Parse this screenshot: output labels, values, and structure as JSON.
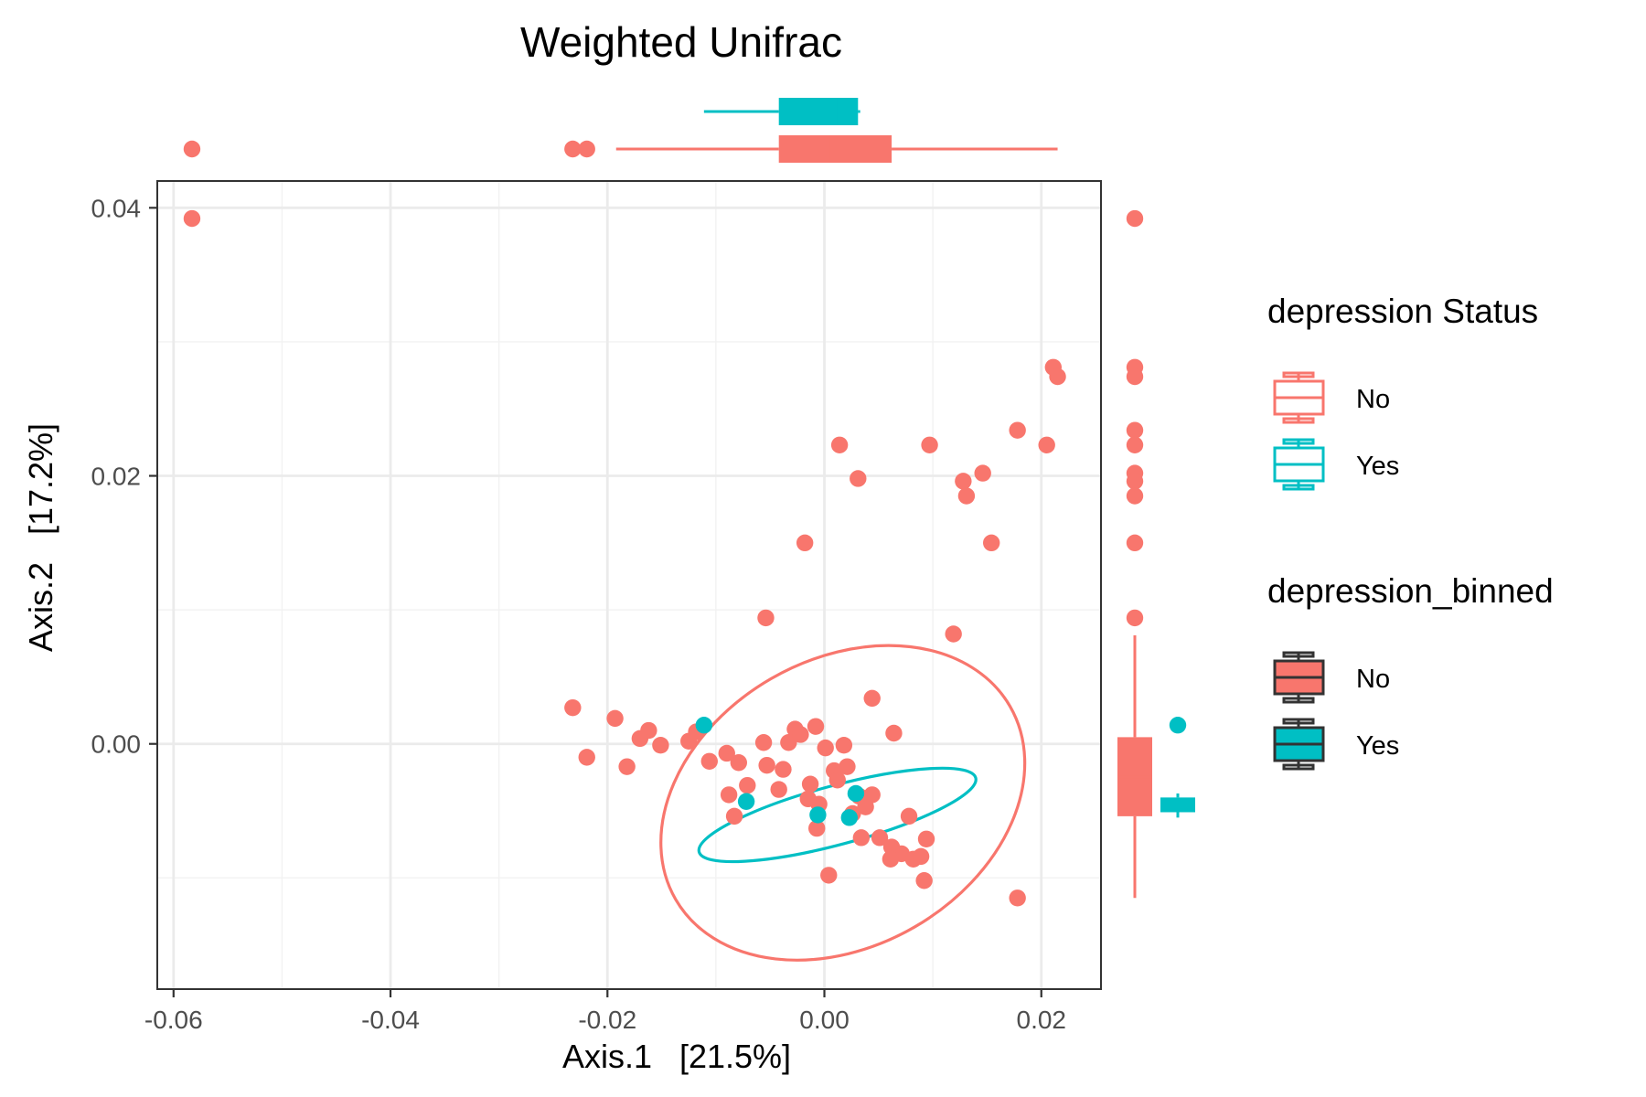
{
  "chart_data": {
    "type": "scatter",
    "title": "Weighted Unifrac",
    "xlabel": "Axis.1   [21.5%]",
    "ylabel": "Axis.2   [17.2%]",
    "xlim": [
      -0.0615,
      0.0255
    ],
    "ylim": [
      -0.0183,
      0.042
    ],
    "x_ticks": [
      -0.06,
      -0.04,
      -0.02,
      0.0,
      0.02
    ],
    "x_tick_labels": [
      "-0.06",
      "-0.04",
      "-0.02",
      "0.00",
      "0.02"
    ],
    "y_ticks": [
      0.0,
      0.02,
      0.04
    ],
    "y_tick_labels": [
      "0.00",
      "0.02",
      "0.04"
    ],
    "grid": true,
    "legend_position": "right",
    "colors": {
      "No": "#F8766D",
      "Yes": "#00BFC4",
      "outline": "#333333"
    },
    "legends": [
      {
        "title": "depression Status",
        "items": [
          "No",
          "Yes"
        ],
        "style": "outline"
      },
      {
        "title": "depression_binned",
        "items": [
          "No",
          "Yes"
        ],
        "style": "filled"
      }
    ],
    "series": [
      {
        "name": "No",
        "points": [
          [
            -0.0583,
            0.0392
          ],
          [
            0.0211,
            0.0281
          ],
          [
            0.0215,
            0.0274
          ],
          [
            0.0178,
            0.0234
          ],
          [
            0.0205,
            0.0223
          ],
          [
            0.0097,
            0.0223
          ],
          [
            0.0014,
            0.0223
          ],
          [
            0.0146,
            0.0202
          ],
          [
            0.0128,
            0.0196
          ],
          [
            0.0031,
            0.0198
          ],
          [
            0.0131,
            0.0185
          ],
          [
            0.0154,
            0.015
          ],
          [
            -0.0018,
            0.015
          ],
          [
            -0.0054,
            0.0094
          ],
          [
            0.0119,
            0.0082
          ],
          [
            0.0044,
            0.0034
          ],
          [
            -0.0232,
            0.0027
          ],
          [
            -0.0193,
            0.0019
          ],
          [
            -0.0219,
            -0.001
          ],
          [
            -0.0182,
            -0.0017
          ],
          [
            -0.017,
            0.0004
          ],
          [
            -0.0162,
            0.001
          ],
          [
            -0.0151,
            -0.0001
          ],
          [
            -0.0125,
            0.0002
          ],
          [
            -0.0118,
            0.0009
          ],
          [
            -0.0106,
            -0.0013
          ],
          [
            -0.009,
            -0.0007
          ],
          [
            -0.0079,
            -0.0014
          ],
          [
            -0.0088,
            -0.0038
          ],
          [
            -0.0083,
            -0.0054
          ],
          [
            -0.0071,
            -0.0031
          ],
          [
            -0.0056,
            0.0001
          ],
          [
            -0.0053,
            -0.0016
          ],
          [
            -0.0038,
            -0.0019
          ],
          [
            -0.0042,
            -0.0034
          ],
          [
            -0.0033,
            0.0001
          ],
          [
            -0.0027,
            0.0011
          ],
          [
            -0.0022,
            0.0007
          ],
          [
            -0.0013,
            -0.003
          ],
          [
            -0.0008,
            0.0013
          ],
          [
            0.0001,
            -0.0003
          ],
          [
            -0.0005,
            -0.0045
          ],
          [
            0.0009,
            -0.002
          ],
          [
            0.0012,
            -0.0027
          ],
          [
            0.0018,
            -0.0001
          ],
          [
            0.0021,
            -0.0017
          ],
          [
            0.0026,
            -0.0052
          ],
          [
            0.0032,
            -0.0039
          ],
          [
            0.0038,
            -0.0047
          ],
          [
            0.0044,
            -0.0038
          ],
          [
            0.0051,
            -0.007
          ],
          [
            0.0064,
            0.0008
          ],
          [
            0.0062,
            -0.0077
          ],
          [
            0.0071,
            -0.0082
          ],
          [
            0.0078,
            -0.0054
          ],
          [
            0.0082,
            -0.0086
          ],
          [
            0.0089,
            -0.0084
          ],
          [
            0.0094,
            -0.0071
          ],
          [
            0.0092,
            -0.0102
          ],
          [
            0.0061,
            -0.0086
          ],
          [
            0.0034,
            -0.007
          ],
          [
            0.0004,
            -0.0098
          ],
          [
            -0.0007,
            -0.0063
          ],
          [
            -0.0015,
            -0.0041
          ],
          [
            0.0178,
            -0.0115
          ]
        ]
      },
      {
        "name": "Yes",
        "points": [
          [
            -0.0111,
            0.0014
          ],
          [
            -0.0072,
            -0.0043
          ],
          [
            0.0029,
            -0.0037
          ],
          [
            0.0023,
            -0.0055
          ],
          [
            -0.0006,
            -0.0053
          ]
        ]
      }
    ],
    "ellipses": [
      {
        "group": "No",
        "center": [
          0.0017,
          -0.0044
        ],
        "semi_axes": [
          0.0178,
          0.0107
        ],
        "angle_deg": -30
      },
      {
        "group": "Yes",
        "center": [
          0.0012,
          -0.0053
        ],
        "semi_axes": [
          0.0132,
          0.0022
        ],
        "angle_deg": -15
      }
    ],
    "top_margin_boxplots": [
      {
        "group": "No",
        "q1": -0.0042,
        "median": 0.0006,
        "q3": 0.0062,
        "whisker_low": -0.0192,
        "whisker_high": 0.0215,
        "outliers": [
          -0.0583,
          -0.0232,
          -0.0219
        ]
      },
      {
        "group": "Yes",
        "q1": -0.0042,
        "median": 0.0013,
        "q3": 0.0031,
        "whisker_low": -0.0111,
        "whisker_high": 0.0033,
        "outliers": []
      }
    ],
    "right_margin_boxplots": [
      {
        "group": "No",
        "q1": -0.0054,
        "median": -0.0025,
        "q3": 0.0005,
        "whisker_low": -0.0115,
        "whisker_high": 0.0081,
        "outliers": [
          0.0392,
          0.0281,
          0.0274,
          0.0234,
          0.0223,
          0.0202,
          0.0196,
          0.0185,
          0.015,
          0.0094
        ]
      },
      {
        "group": "Yes",
        "q1": -0.0051,
        "median": -0.0044,
        "q3": -0.004,
        "whisker_low": -0.0055,
        "whisker_high": -0.0037,
        "outliers": [
          0.0014
        ]
      }
    ]
  }
}
